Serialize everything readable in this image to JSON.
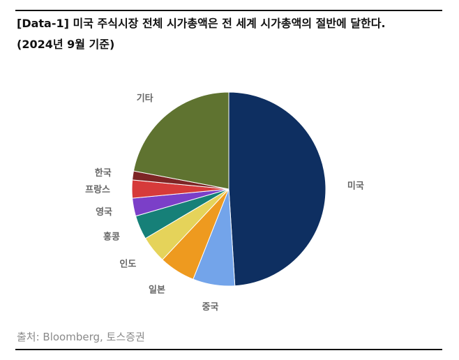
{
  "title_line1": "[Data-1] 미국 주식시장 전체 시가총액은 전 세계 시가총액의 절반에 달한다.",
  "title_line2": "(2024년 9월 기준)",
  "source": "출처: Bloomberg, 토스증권",
  "chart_data": {
    "type": "pie",
    "start_angle_deg": 0,
    "direction": "clockwise",
    "slices": [
      {
        "label": "미국",
        "value": 49.0,
        "color": "#0e2f61"
      },
      {
        "label": "중국",
        "value": 7.0,
        "color": "#73a4ea"
      },
      {
        "label": "일본",
        "value": 6.0,
        "color": "#ee9a1f"
      },
      {
        "label": "인도",
        "value": 4.5,
        "color": "#e5d35a"
      },
      {
        "label": "홍콩",
        "value": 4.0,
        "color": "#168078"
      },
      {
        "label": "영국",
        "value": 3.0,
        "color": "#7b3fc8"
      },
      {
        "label": "프랑스",
        "value": 3.0,
        "color": "#d63a3a"
      },
      {
        "label": "한국",
        "value": 1.5,
        "color": "#7d2525"
      },
      {
        "label": "기타",
        "value": 22.0,
        "color": "#5f7330"
      }
    ]
  }
}
